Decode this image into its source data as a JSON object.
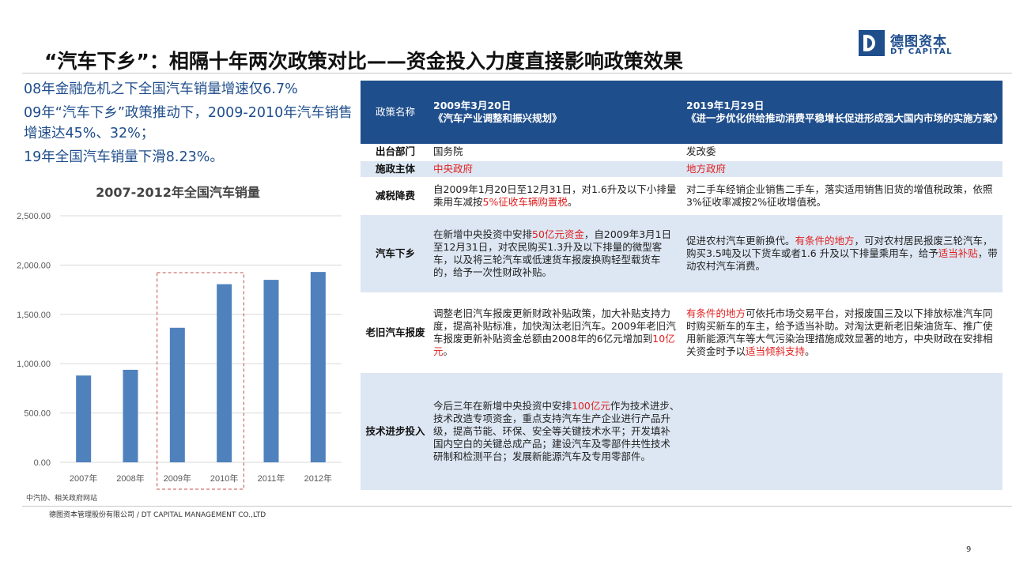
{
  "title": "“汽车下乡”：相隔十年两次政策对比——资金投入力度直接影响政策效果",
  "logo": {
    "cn": "德图资本",
    "en": "DT CAPITAL",
    "icon": "dt-logo-icon"
  },
  "bullets": [
    "08年金融危机之下全国汽车销量增速仅6.7%",
    "09年“汽车下乡”政策推动下，2009-2010年汽车销售增速达45%、32%；",
    "19年全国汽车销量下滑8.23%。"
  ],
  "chart_data": {
    "type": "bar",
    "title": "2007-2012年全国汽车销量",
    "categories": [
      "2007年",
      "2008年",
      "2009年",
      "2010年",
      "2011年",
      "2012年"
    ],
    "values": [
      880,
      938,
      1364,
      1806,
      1850,
      1930
    ],
    "yticks": [
      "0.00",
      "500.00",
      "1,000.00",
      "1,500.00",
      "2,000.00",
      "2,500.00"
    ],
    "ylim": [
      0,
      2500
    ],
    "bar_color": "#4f81bd",
    "highlight": [
      "2009年",
      "2010年"
    ],
    "highlight_color": "#c0504d",
    "grid": true
  },
  "source": "中汽协、相关政府网站",
  "footer": "德图资本管理股份有限公司 / DT CAPITAL MANAGEMENT CO.,LTD",
  "page_number": "9",
  "table": {
    "header": {
      "label": "政策名称",
      "left_date": "2009年3月20日",
      "left_name": "《汽车产业调整和振兴规划》",
      "right_date": "2019年1月29日",
      "right_name": "《进一步优化供给推动消费平稳增长促进形成强大国内市场的实施方案》"
    },
    "rows": [
      {
        "label": "出台部门",
        "left": [
          {
            "t": "国务院"
          }
        ],
        "right": [
          {
            "t": "发改委"
          }
        ]
      },
      {
        "label": "施政主体",
        "left": [
          {
            "t": "中央政府",
            "red": true
          }
        ],
        "right": [
          {
            "t": "地方政府",
            "red": true
          }
        ]
      },
      {
        "label": "减税降费",
        "left": [
          {
            "t": "自2009年1月20日至12月31日，对1.6升及以下小排量乘用车减按"
          },
          {
            "t": "5%征收车辆购置税",
            "red": true
          },
          {
            "t": "。"
          }
        ],
        "right": [
          {
            "t": "对二手车经销企业销售二手车，落实适用销售旧货的增值税政策，依照 3%征收率减按2%征收增值税。"
          }
        ]
      },
      {
        "label": "汽车下乡",
        "left": [
          {
            "t": "在新增中央投资中安排"
          },
          {
            "t": "50亿元资金",
            "red": true
          },
          {
            "t": "，自2009年3月1日至12月31日，对农民购买1.3升及以下排量的微型客车，以及将三轮汽车或低速货车报废换购轻型载货车的，给予一次性财政补贴。"
          }
        ],
        "right": [
          {
            "t": "促进农村汽车更新换代。"
          },
          {
            "t": "有条件的地方",
            "red": true
          },
          {
            "t": "，可对农村居民报废三轮汽车，购买3.5吨及以下货车或者1.6 升及以下排量乘用车，给予"
          },
          {
            "t": "适当补贴",
            "red": true
          },
          {
            "t": "，带动农村汽车消费。"
          }
        ]
      },
      {
        "label": "老旧汽车报废",
        "left": [
          {
            "t": "调整老旧汽车报废更新财政补贴政策，加大补贴支持力度，提高补贴标准，加快淘汰老旧汽车。2009年老旧汽车报废更新补贴资金总额由2008年的6亿元增加到"
          },
          {
            "t": "10亿元",
            "red": true
          },
          {
            "t": "。"
          }
        ],
        "right": [
          {
            "t": "有条件的地方",
            "red": true
          },
          {
            "t": "可依托市场交易平台，对报废国三及以下排放标准汽车同时购买新车的车主，给予适当补助。对淘汰更新老旧柴油货车、推广使用新能源汽车等大气污染治理措施成效显著的地方，中央财政在安排相关资金时予以"
          },
          {
            "t": "适当倾斜支持",
            "red": true
          },
          {
            "t": "。"
          }
        ]
      },
      {
        "label": "技术进步投入",
        "left": [
          {
            "t": "今后三年在新增中央投资中安排"
          },
          {
            "t": "100亿元",
            "red": true
          },
          {
            "t": "作为技术进步、技术改造专项资金，重点支持汽车生产企业进行产品升级，提高节能、环保、安全等关键技术水平；开发填补国内空白的关键总成产品；建设汽车及零部件共性技术研制和检测平台；发展新能源汽车及专用零部件。"
          }
        ],
        "right": [
          {
            "t": ""
          }
        ]
      }
    ]
  }
}
